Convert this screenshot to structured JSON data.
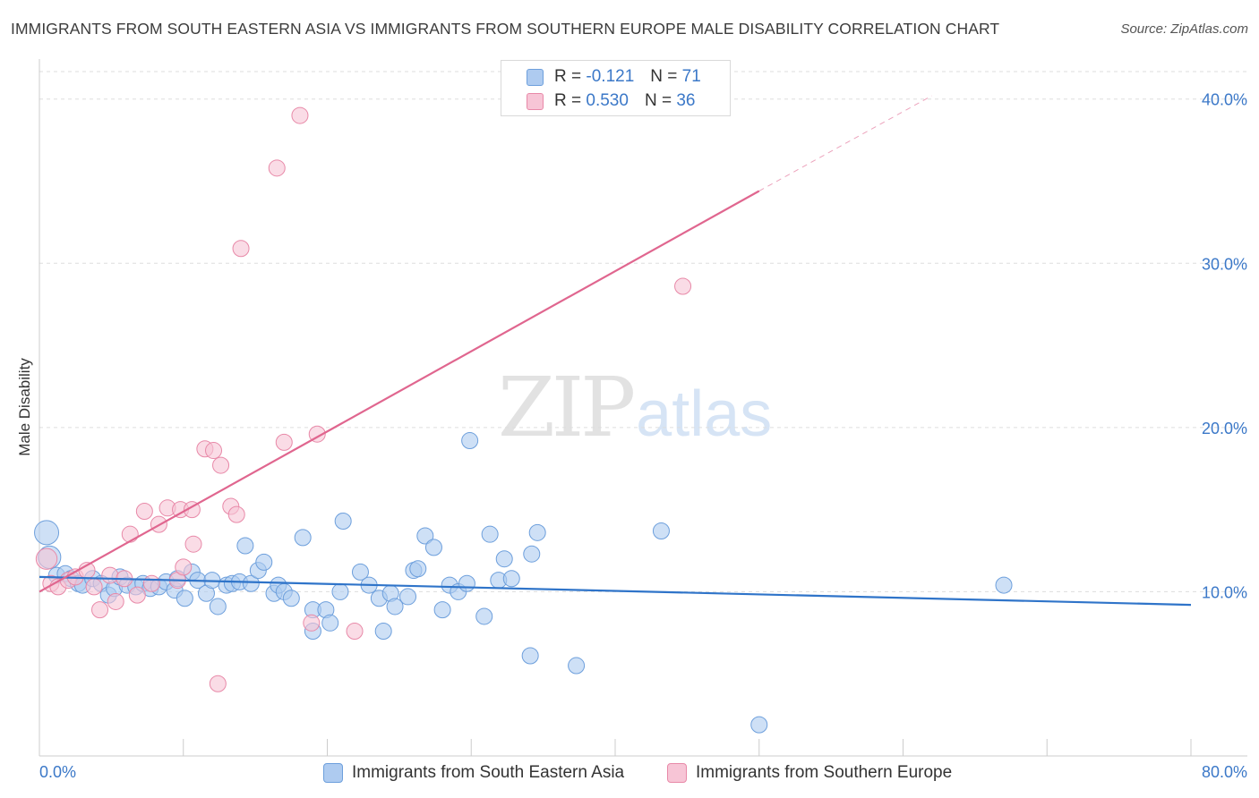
{
  "title": "IMMIGRANTS FROM SOUTH EASTERN ASIA VS IMMIGRANTS FROM SOUTHERN EUROPE MALE DISABILITY CORRELATION CHART",
  "source": "Source: ZipAtlas.com",
  "watermark": {
    "zip": "ZIP",
    "atlas": "atlas"
  },
  "legend": {
    "series1": {
      "r_label": "R =",
      "r_value": "-0.121",
      "n_label": "N =",
      "n_value": "71"
    },
    "series2": {
      "r_label": "R =",
      "r_value": "0.530",
      "n_label": "N =",
      "n_value": "36"
    }
  },
  "colors": {
    "blue_fill": "#aecbf0",
    "blue_stroke": "#6d9fdc",
    "blue_line": "#2f74c9",
    "pink_fill": "#f7c5d6",
    "pink_stroke": "#e889a8",
    "pink_line": "#e0668f",
    "grid": "#dddddd",
    "tick_label": "#3b78c8"
  },
  "chart_data": {
    "type": "scatter",
    "title": "IMMIGRANTS FROM SOUTH EASTERN ASIA VS IMMIGRANTS FROM SOUTHERN EUROPE MALE DISABILITY CORRELATION CHART",
    "xlabel": "",
    "ylabel": "Male Disability",
    "xlim": [
      0,
      80
    ],
    "ylim": [
      0,
      42
    ],
    "x_tick_labels": [
      "0.0%",
      "80.0%"
    ],
    "y_ticks": [
      10,
      20,
      30,
      40
    ],
    "y_tick_labels": [
      "10.0%",
      "20.0%",
      "30.0%",
      "40.0%"
    ],
    "grid": true,
    "legend_position": "top-center",
    "series": [
      {
        "name": "Immigrants from South Eastern Asia",
        "color": "blue",
        "r": -0.121,
        "n": 71,
        "trend": {
          "x": [
            0,
            80
          ],
          "y": [
            10.9,
            9.2
          ]
        },
        "points": [
          [
            0.5,
            13.6,
            1.5
          ],
          [
            0.7,
            12.1,
            1.4
          ],
          [
            1.2,
            11.0,
            1.0
          ],
          [
            1.8,
            11.1,
            1.0
          ],
          [
            2.2,
            10.8,
            1.0
          ],
          [
            2.7,
            10.5,
            1.0
          ],
          [
            3.0,
            10.4,
            1.0
          ],
          [
            3.7,
            10.8,
            1.0
          ],
          [
            4.3,
            10.5,
            1.0
          ],
          [
            4.8,
            9.8,
            1.0
          ],
          [
            5.2,
            10.2,
            1.0
          ],
          [
            5.6,
            10.9,
            1.0
          ],
          [
            6.1,
            10.4,
            1.0
          ],
          [
            6.7,
            10.3,
            1.0
          ],
          [
            7.2,
            10.5,
            1.0
          ],
          [
            7.7,
            10.2,
            1.0
          ],
          [
            8.3,
            10.3,
            1.0
          ],
          [
            8.8,
            10.6,
            1.0
          ],
          [
            9.4,
            10.1,
            1.0
          ],
          [
            9.6,
            10.8,
            1.0
          ],
          [
            10.1,
            9.6,
            1.0
          ],
          [
            10.6,
            11.2,
            1.0
          ],
          [
            11.0,
            10.7,
            1.0
          ],
          [
            11.6,
            9.9,
            1.0
          ],
          [
            12.0,
            10.7,
            1.0
          ],
          [
            12.4,
            9.1,
            1.0
          ],
          [
            13.0,
            10.4,
            1.0
          ],
          [
            13.4,
            10.5,
            1.0
          ],
          [
            13.9,
            10.6,
            1.0
          ],
          [
            14.3,
            12.8,
            1.0
          ],
          [
            14.7,
            10.5,
            1.0
          ],
          [
            15.2,
            11.3,
            1.0
          ],
          [
            15.6,
            11.8,
            1.0
          ],
          [
            16.3,
            9.9,
            1.0
          ],
          [
            16.6,
            10.4,
            1.0
          ],
          [
            17.0,
            10.0,
            1.0
          ],
          [
            17.5,
            9.6,
            1.0
          ],
          [
            18.3,
            13.3,
            1.0
          ],
          [
            19.0,
            8.9,
            1.0
          ],
          [
            19.0,
            7.6,
            1.0
          ],
          [
            19.9,
            8.9,
            1.0
          ],
          [
            20.2,
            8.1,
            1.0
          ],
          [
            20.9,
            10.0,
            1.0
          ],
          [
            21.1,
            14.3,
            1.0
          ],
          [
            22.3,
            11.2,
            1.0
          ],
          [
            22.9,
            10.4,
            1.0
          ],
          [
            23.6,
            9.6,
            1.0
          ],
          [
            23.9,
            7.6,
            1.0
          ],
          [
            24.4,
            9.9,
            1.0
          ],
          [
            24.7,
            9.1,
            1.0
          ],
          [
            25.6,
            9.7,
            1.0
          ],
          [
            26.0,
            11.3,
            1.0
          ],
          [
            26.3,
            11.4,
            1.0
          ],
          [
            26.8,
            13.4,
            1.0
          ],
          [
            27.4,
            12.7,
            1.0
          ],
          [
            28.0,
            8.9,
            1.0
          ],
          [
            28.5,
            10.4,
            1.0
          ],
          [
            29.1,
            10.0,
            1.0
          ],
          [
            29.7,
            10.5,
            1.0
          ],
          [
            29.9,
            19.2,
            1.0
          ],
          [
            30.9,
            8.5,
            1.0
          ],
          [
            31.3,
            13.5,
            1.0
          ],
          [
            31.9,
            10.7,
            1.0
          ],
          [
            32.3,
            12.0,
            1.0
          ],
          [
            32.8,
            10.8,
            1.0
          ],
          [
            34.2,
            12.3,
            1.0
          ],
          [
            34.6,
            13.6,
            1.0
          ],
          [
            34.1,
            6.1,
            1.0
          ],
          [
            37.3,
            5.5,
            1.0
          ],
          [
            43.2,
            13.7,
            1.0
          ],
          [
            50.0,
            1.9,
            1.0
          ],
          [
            67.0,
            10.4,
            1.0
          ]
        ]
      },
      {
        "name": "Immigrants from Southern Europe",
        "color": "pink",
        "r": 0.53,
        "n": 36,
        "trend": {
          "x": [
            0,
            50.0
          ],
          "y": [
            10.0,
            34.4
          ]
        },
        "trend_extension": {
          "x": [
            50.0,
            62.0
          ],
          "y": [
            34.4,
            40.2
          ]
        },
        "points": [
          [
            0.5,
            12.0,
            1.3
          ],
          [
            0.8,
            10.5,
            1.0
          ],
          [
            1.3,
            10.3,
            1.0
          ],
          [
            2.0,
            10.7,
            1.0
          ],
          [
            2.5,
            10.9,
            1.0
          ],
          [
            3.3,
            11.3,
            1.0
          ],
          [
            3.8,
            10.3,
            1.0
          ],
          [
            4.2,
            8.9,
            1.0
          ],
          [
            4.9,
            11.0,
            1.0
          ],
          [
            5.3,
            9.4,
            1.0
          ],
          [
            5.9,
            10.8,
            1.0
          ],
          [
            6.3,
            13.5,
            1.0
          ],
          [
            6.8,
            9.8,
            1.0
          ],
          [
            7.3,
            14.9,
            1.0
          ],
          [
            7.8,
            10.5,
            1.0
          ],
          [
            8.3,
            14.1,
            1.0
          ],
          [
            8.9,
            15.1,
            1.0
          ],
          [
            9.6,
            10.7,
            1.0
          ],
          [
            9.8,
            15.0,
            1.0
          ],
          [
            10.6,
            15.0,
            1.0
          ],
          [
            10.7,
            12.9,
            1.0
          ],
          [
            11.5,
            18.7,
            1.0
          ],
          [
            12.1,
            18.6,
            1.0
          ],
          [
            12.4,
            4.4,
            1.0
          ],
          [
            12.6,
            17.7,
            1.0
          ],
          [
            13.3,
            15.2,
            1.0
          ],
          [
            13.7,
            14.7,
            1.0
          ],
          [
            14.0,
            30.9,
            1.0
          ],
          [
            16.5,
            35.8,
            1.0
          ],
          [
            17.0,
            19.1,
            1.0
          ],
          [
            18.1,
            39.0,
            1.0
          ],
          [
            18.9,
            8.1,
            1.0
          ],
          [
            19.3,
            19.6,
            1.0
          ],
          [
            21.9,
            7.6,
            1.0
          ],
          [
            44.7,
            28.6,
            1.0
          ],
          [
            10.0,
            11.5,
            1.0
          ]
        ]
      }
    ]
  }
}
